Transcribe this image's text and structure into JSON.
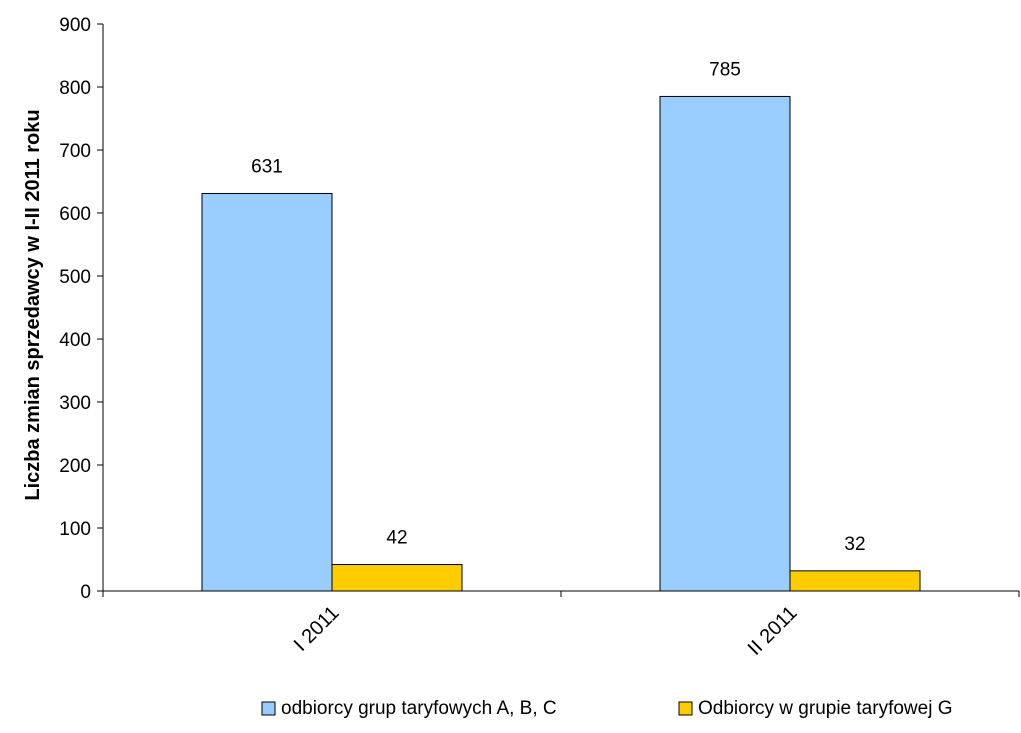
{
  "chart_data": {
    "type": "bar",
    "title": "",
    "xlabel": "",
    "ylabel": "Liczba zmian sprzedawcy w I-II 2011 roku",
    "categories": [
      "I 2011",
      "II 2011"
    ],
    "series": [
      {
        "name": "odbiorcy grup taryfowych A, B, C",
        "values": [
          631,
          785
        ],
        "color": "#99ccff"
      },
      {
        "name": "Odbiorcy w grupie taryfowej G",
        "values": [
          42,
          32
        ],
        "color": "#ffcc00"
      }
    ],
    "ylim": [
      0,
      900
    ],
    "yticks": [
      0,
      100,
      200,
      300,
      400,
      500,
      600,
      700,
      800,
      900
    ],
    "grid": false,
    "legend_position": "bottom"
  }
}
